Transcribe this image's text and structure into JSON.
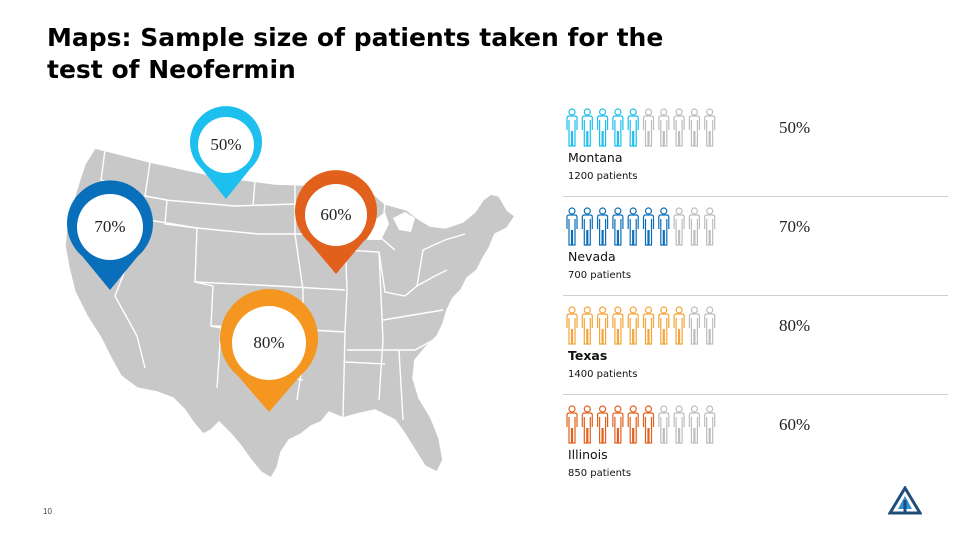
{
  "slide": {
    "title": "Maps: Sample size of patients taken for the test of Neofermin",
    "page_number": "10"
  },
  "map_pins": [
    {
      "state": "Montana",
      "label": "50%",
      "color": "#1cbfee"
    },
    {
      "state": "Nevada",
      "label": "70%",
      "color": "#0a6fba"
    },
    {
      "state": "Illinois",
      "label": "60%",
      "color": "#e0601c"
    },
    {
      "state": "Texas",
      "label": "80%",
      "color": "#f4961f"
    }
  ],
  "rows": [
    {
      "state": "Montana",
      "patients": "1200 patients",
      "percent": "50%",
      "filled_fraction": 0.5,
      "color": "#1cbfee",
      "bold": false
    },
    {
      "state": "Nevada",
      "patients": "700 patients",
      "percent": "70%",
      "filled_fraction": 0.7,
      "color": "#0a6fba",
      "bold": false
    },
    {
      "state": "Texas",
      "patients": "1400 patients",
      "percent": "80%",
      "filled_fraction": 0.8,
      "color": "#f4a438",
      "bold": true
    },
    {
      "state": "Illinois",
      "patients": "850 patients",
      "percent": "60%",
      "filled_fraction": 0.6,
      "color": "#e0601c",
      "bold": false
    }
  ],
  "icons": {
    "person": "person-icon",
    "map_pin": "map-pin-icon",
    "logo": "company-logo-icon"
  },
  "colors": {
    "map_fill": "#c8c8c8",
    "map_border": "#ffffff",
    "empty_person": "#bdbdbd"
  }
}
